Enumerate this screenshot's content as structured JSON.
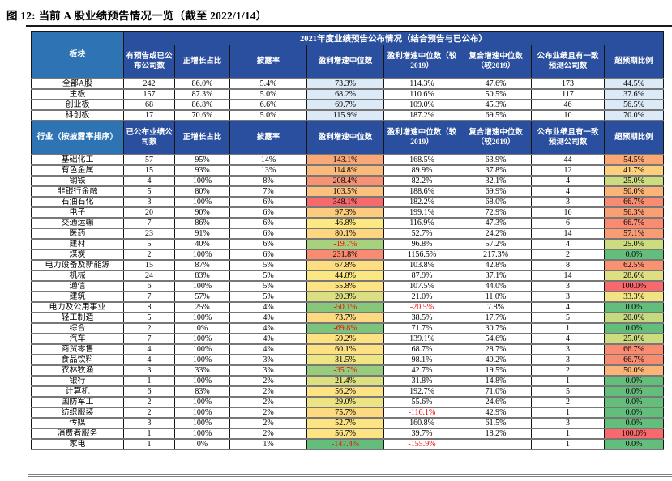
{
  "title": "图 12: 当前 A 股业绩预告情况一览（截至 2022/1/14）",
  "band_title": "2021年度业绩预告公布情况（结合预告与已公布）",
  "colors": {
    "header_dark_blue": "#2A4F9E",
    "header_medium_blue": "#2E74B5",
    "light_blue_cell": "#DCE9F6",
    "negative_text": "#FF0000",
    "heat_green": "#63BE7B",
    "heat_yellow": "#FFEB84",
    "heat_red": "#F8696B"
  },
  "section1": {
    "row_header": "板块",
    "columns": [
      "有预告或已公布公司数",
      "正增长占比",
      "披露率",
      "盈利增速中位数",
      "盈利增速中位数（较2019）",
      "复合增速中位数（较2019）",
      "公布业绩且有一致预测公司数",
      "超预期比例"
    ],
    "rows": [
      {
        "name": "全部A股",
        "cells": [
          "242",
          "86.0%",
          "5.4%",
          "73.3%",
          "114.3%",
          "47.6%",
          "173",
          "44.5%"
        ]
      },
      {
        "name": "主板",
        "cells": [
          "157",
          "87.3%",
          "5.0%",
          "68.2%",
          "110.6%",
          "50.5%",
          "117",
          "37.6%"
        ]
      },
      {
        "name": "创业板",
        "cells": [
          "68",
          "86.8%",
          "6.6%",
          "69.7%",
          "109.0%",
          "45.3%",
          "46",
          "56.5%"
        ]
      },
      {
        "name": "科创板",
        "cells": [
          "17",
          "70.6%",
          "5.0%",
          "115.9%",
          "187.2%",
          "69.5%",
          "10",
          "70.0%"
        ]
      }
    ]
  },
  "section2": {
    "row_header": "行业（按披露率排序）",
    "columns": [
      "已公布业绩公司数",
      "正增长占比",
      "披露率",
      "盈利增速中位数",
      "盈利增速中位数（较2019）",
      "复合增速中位数（较2019）",
      "公布业绩且有一致预测公司数",
      "超预期比例"
    ],
    "rows": [
      {
        "name": "基础化工",
        "cells": [
          "57",
          "95%",
          "14%",
          "143.1%",
          "168.5%",
          "63.9%",
          "44",
          "54.5%"
        ],
        "median_bg": "#FBA877",
        "beat_bg": "#FBA875"
      },
      {
        "name": "有色金属",
        "cells": [
          "15",
          "93%",
          "13%",
          "114.8%",
          "89.9%",
          "37.8%",
          "12",
          "41.7%"
        ],
        "median_bg": "#FCBA7A",
        "beat_bg": "#FDD07E"
      },
      {
        "name": "钢铁",
        "cells": [
          "4",
          "100%",
          "8%",
          "208.4%",
          "82.2%",
          "32.1%",
          "4",
          "25.0%"
        ],
        "median_bg": "#F99272",
        "beat_bg": "#CEDC80"
      },
      {
        "name": "非银行金融",
        "cells": [
          "5",
          "80%",
          "7%",
          "103.5%",
          "188.6%",
          "69.9%",
          "4",
          "50.0%"
        ],
        "median_bg": "#FCC17C",
        "beat_bg": "#FCB377"
      },
      {
        "name": "石油石化",
        "cells": [
          "3",
          "100%",
          "6%",
          "348.1%",
          "182.2%",
          "68.0%",
          "3",
          "66.7%"
        ],
        "median_bg": "#F8696B",
        "beat_bg": "#F98B70"
      },
      {
        "name": "电子",
        "cells": [
          "20",
          "90%",
          "6%",
          "97.3%",
          "199.1%",
          "72.9%",
          "16",
          "56.3%"
        ],
        "median_bg": "#FDCB7D",
        "beat_bg": "#FA9E74"
      },
      {
        "name": "交通运输",
        "cells": [
          "7",
          "86%",
          "6%",
          "46.8%",
          "116.9%",
          "47.3%",
          "6",
          "66.7%"
        ],
        "median_bg": "#FDE983",
        "beat_bg": "#F98B70"
      },
      {
        "name": "医药",
        "cells": [
          "23",
          "91%",
          "6%",
          "80.1%",
          "52.7%",
          "24.2%",
          "14",
          "57.1%"
        ],
        "median_bg": "#FDD67F",
        "beat_bg": "#FA9C73"
      },
      {
        "name": "建材",
        "cells": [
          "5",
          "40%",
          "6%",
          "-19.7%",
          "96.8%",
          "57.2%",
          "4",
          "25.0%"
        ],
        "median_bg": "#A8D17E",
        "beat_bg": "#CEDC80"
      },
      {
        "name": "煤炭",
        "cells": [
          "2",
          "100%",
          "6%",
          "231.8%",
          "1156.5%",
          "217.3%",
          "2",
          "0.0%"
        ],
        "median_bg": "#F98B70",
        "beat_bg": "#63BE7B"
      },
      {
        "name": "电力设备及新能源",
        "cells": [
          "15",
          "87%",
          "5%",
          "67.8%",
          "103.8%",
          "42.8%",
          "8",
          "62.5%"
        ],
        "median_bg": "#FEDE81",
        "beat_bg": "#FA9171"
      },
      {
        "name": "机械",
        "cells": [
          "24",
          "83%",
          "5%",
          "44.8%",
          "87.9%",
          "37.1%",
          "14",
          "28.6%"
        ],
        "median_bg": "#FCE883",
        "beat_bg": "#DEDF81"
      },
      {
        "name": "通信",
        "cells": [
          "6",
          "100%",
          "5%",
          "55.8%",
          "107.5%",
          "44.0%",
          "3",
          "100.0%"
        ],
        "median_bg": "#FDE382",
        "beat_bg": "#F8696B"
      },
      {
        "name": "建筑",
        "cells": [
          "7",
          "57%",
          "5%",
          "20.3%",
          "21.0%",
          "11.0%",
          "3",
          "33.3%"
        ],
        "median_bg": "#DCDF81",
        "beat_bg": "#EFE383"
      },
      {
        "name": "电力及公用事业",
        "cells": [
          "8",
          "25%",
          "4%",
          "-50.1%",
          "-20.5%",
          "7.8%",
          "4",
          "0.0%"
        ],
        "median_bg": "#86C77C",
        "beat_bg": "#63BE7B"
      },
      {
        "name": "轻工制造",
        "cells": [
          "5",
          "100%",
          "4%",
          "73.7%",
          "38.5%",
          "17.7%",
          "5",
          "20.0%"
        ],
        "median_bg": "#FDDA80",
        "beat_bg": "#C5D97F"
      },
      {
        "name": "综合",
        "cells": [
          "2",
          "0%",
          "4%",
          "-69.8%",
          "71.7%",
          "30.7%",
          "1",
          "0.0%"
        ],
        "median_bg": "#7CC47B",
        "beat_bg": "#63BE7B"
      },
      {
        "name": "汽车",
        "cells": [
          "7",
          "100%",
          "4%",
          "59.2%",
          "139.1%",
          "54.6%",
          "4",
          "25.0%"
        ],
        "median_bg": "#FDE282",
        "beat_bg": "#CEDC80"
      },
      {
        "name": "商贸零售",
        "cells": [
          "4",
          "100%",
          "4%",
          "60.1%",
          "68.7%",
          "28.7%",
          "3",
          "66.7%"
        ],
        "median_bg": "#FDE182",
        "beat_bg": "#F98B70"
      },
      {
        "name": "食品饮料",
        "cells": [
          "4",
          "100%",
          "3%",
          "31.5%",
          "98.1%",
          "40.2%",
          "3",
          "66.7%"
        ],
        "median_bg": "#EFE583",
        "beat_bg": "#F98B70"
      },
      {
        "name": "农林牧渔",
        "cells": [
          "3",
          "33%",
          "3%",
          "-35.7%",
          "42.7%",
          "19.5%",
          "2",
          "50.0%"
        ],
        "median_bg": "#97CC7D",
        "beat_bg": "#FCB377"
      },
      {
        "name": "银行",
        "cells": [
          "1",
          "100%",
          "2%",
          "21.4%",
          "31.8%",
          "14.8%",
          "1",
          "0.0%"
        ],
        "median_bg": "#DDE081",
        "beat_bg": "#63BE7B"
      },
      {
        "name": "计算机",
        "cells": [
          "6",
          "83%",
          "2%",
          "56.2%",
          "192.7%",
          "71.0%",
          "5",
          "0.0%"
        ],
        "median_bg": "#FDE382",
        "beat_bg": "#63BE7B"
      },
      {
        "name": "国防军工",
        "cells": [
          "2",
          "100%",
          "2%",
          "29.0%",
          "55.6%",
          "24.6%",
          "2",
          "0.0%"
        ],
        "median_bg": "#ECE483",
        "beat_bg": "#63BE7B"
      },
      {
        "name": "纺织服装",
        "cells": [
          "2",
          "100%",
          "2%",
          "75.7%",
          "-116.1%",
          "42.9%",
          "1",
          "0.0%"
        ],
        "median_bg": "#FDD980",
        "beat_bg": "#63BE7B"
      },
      {
        "name": "传媒",
        "cells": [
          "3",
          "100%",
          "2%",
          "52.7%",
          "160.8%",
          "61.5%",
          "3",
          "0.0%"
        ],
        "median_bg": "#FDE482",
        "beat_bg": "#63BE7B"
      },
      {
        "name": "消费者服务",
        "cells": [
          "1",
          "100%",
          "2%",
          "56.7%",
          "39.7%",
          "18.2%",
          "1",
          "100.0%"
        ],
        "median_bg": "#FDE382",
        "beat_bg": "#F8696B"
      },
      {
        "name": "家电",
        "cells": [
          "1",
          "0%",
          "1%",
          "-147.4%",
          "-155.9%",
          "",
          "1",
          "0.0%"
        ],
        "median_bg": "#63BE7B",
        "beat_bg": "#63BE7B"
      }
    ]
  }
}
